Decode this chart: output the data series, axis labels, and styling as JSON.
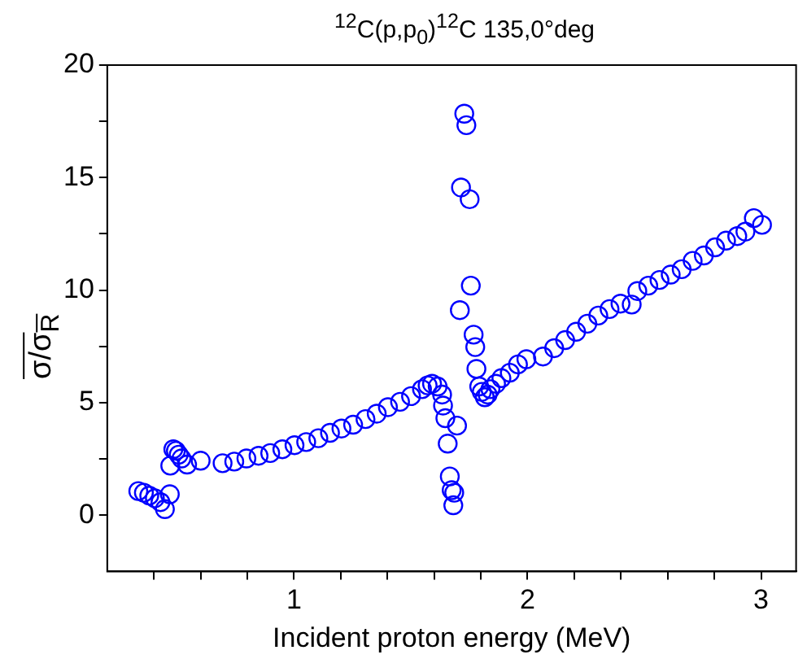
{
  "chart_data": {
    "type": "scatter",
    "title": "$^{12}$C(p,p$_{0}$)$^{12}$C  135,0°deg",
    "xlabel": "Incident proton energy (MeV)",
    "ylabel": "σ/σ$_{R}$",
    "xlim": [
      0.2,
      3.15
    ],
    "xticks": [
      {
        "value": 0.4,
        "label": null
      },
      {
        "value": 0.6,
        "label": null
      },
      {
        "value": 0.8,
        "label": null
      },
      1,
      {
        "value": 1.2,
        "label": null
      },
      {
        "value": 1.4,
        "label": null
      },
      {
        "value": 1.6,
        "label": null
      },
      {
        "value": 1.8,
        "label": null
      },
      2,
      {
        "value": 2.2,
        "label": null
      },
      {
        "value": 2.4,
        "label": null
      },
      {
        "value": 2.6,
        "label": null
      },
      {
        "value": 2.8,
        "label": null
      },
      3
    ],
    "ylim": [
      -2.5,
      20
    ],
    "yticks": [
      0,
      {
        "value": 2.5,
        "label": null
      },
      5,
      {
        "value": 7.5,
        "label": null
      },
      10,
      {
        "value": 12.5,
        "label": null
      },
      15,
      {
        "value": 17.5,
        "label": null
      },
      20
    ],
    "grid": false,
    "legend": false,
    "marker": "circle",
    "series": [
      {
        "color": "#0000ff",
        "x": [
          0.333,
          0.357,
          0.38,
          0.404,
          0.428,
          0.447,
          0.468,
          0.47,
          0.483,
          0.494,
          0.506,
          0.518,
          0.542,
          0.6,
          0.694,
          0.744,
          0.796,
          0.848,
          0.898,
          0.95,
          1.002,
          1.052,
          1.104,
          1.154,
          1.203,
          1.253,
          1.306,
          1.354,
          1.402,
          1.454,
          1.501,
          1.548,
          1.572,
          1.591,
          1.615,
          1.634,
          1.638,
          1.648,
          1.698,
          1.658,
          1.667,
          1.686,
          1.675,
          1.682,
          1.71,
          1.757,
          1.715,
          1.752,
          1.729,
          1.738,
          1.769,
          1.776,
          1.781,
          1.793,
          1.804,
          1.817,
          1.829,
          1.841,
          1.865,
          1.888,
          1.924,
          1.959,
          1.995,
          2.066,
          2.114,
          2.161,
          2.208,
          2.256,
          2.303,
          2.351,
          2.398,
          2.446,
          2.47,
          2.517,
          2.565,
          2.613,
          2.66,
          2.707,
          2.755,
          2.803,
          2.85,
          2.898,
          2.933,
          2.969,
          3.004
        ],
        "values": [
          1.07,
          1.0,
          0.87,
          0.75,
          0.58,
          0.27,
          0.93,
          2.2,
          2.93,
          2.86,
          2.69,
          2.52,
          2.25,
          2.42,
          2.31,
          2.38,
          2.52,
          2.64,
          2.76,
          2.93,
          3.11,
          3.25,
          3.42,
          3.66,
          3.85,
          4.02,
          4.27,
          4.51,
          4.8,
          5.04,
          5.29,
          5.6,
          5.77,
          5.84,
          5.72,
          5.36,
          4.87,
          4.31,
          3.98,
          3.18,
          1.72,
          1.0,
          1.11,
          0.44,
          9.11,
          10.2,
          14.56,
          14.04,
          17.84,
          17.33,
          8.02,
          7.47,
          6.5,
          5.72,
          5.48,
          5.24,
          5.36,
          5.6,
          5.84,
          6.09,
          6.33,
          6.7,
          6.93,
          7.05,
          7.42,
          7.78,
          8.15,
          8.51,
          8.87,
          9.16,
          9.4,
          9.36,
          9.96,
          10.2,
          10.45,
          10.69,
          10.93,
          11.3,
          11.54,
          11.9,
          12.2,
          12.4,
          12.6,
          13.2,
          12.9
        ]
      }
    ]
  }
}
